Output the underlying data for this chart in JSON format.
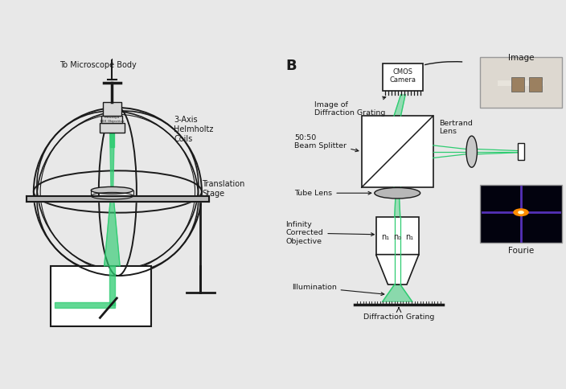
{
  "bg_color": "#e8e8e8",
  "panel_a_bg": "#e8e8e8",
  "panel_b_bg": "#e8e8e8",
  "green_color": "#2ecc71",
  "dark_color": "#1a1a1a",
  "gray_color": "#888888",
  "light_gray": "#cccccc",
  "label_B_text": "B",
  "texts": {
    "microscope_body": "To Microscope Body",
    "helmholtz": "3-Axis\nHelmholtz\nCoils",
    "translation": "Translation\nStage",
    "cmos": "CMOS\nCamera",
    "image_of": "Image of\nDiffraction Grating",
    "bertrand": "Bertrand\nLens",
    "beam_splitter": "50:50\nBeam Splitter",
    "tube_lens": "Tube Lens",
    "infinity": "Infinity\nCorrected\nObjective",
    "illumination": "Illumination",
    "diff_grating": "Diffraction Grating",
    "image_label": "Image",
    "fourier_label": "Fourie"
  }
}
